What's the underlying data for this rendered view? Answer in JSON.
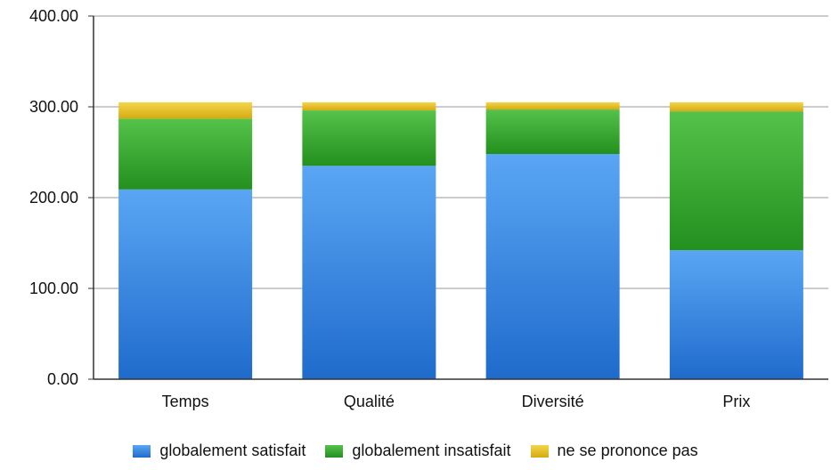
{
  "chart_data": {
    "type": "bar",
    "stacked": true,
    "categories": [
      "Temps",
      "Qualité",
      "Diversité",
      "Prix"
    ],
    "series": [
      {
        "name": "globalement satisfait",
        "values": [
          209,
          235,
          248,
          142
        ],
        "color": "#3f8ee6",
        "color_light": "#5aa6f4",
        "color_dark": "#1f6bcc"
      },
      {
        "name": "globalement insatisfait",
        "values": [
          78,
          61,
          49,
          153
        ],
        "color": "#37a830",
        "color_light": "#55c24a",
        "color_dark": "#23901f"
      },
      {
        "name": "ne se prononce pas",
        "values": [
          18,
          9,
          8,
          10
        ],
        "color": "#e6c21e",
        "color_light": "#f2d64c",
        "color_dark": "#d6aa10"
      }
    ],
    "yticks": [
      "0.00",
      "100.00",
      "200.00",
      "300.00",
      "400.00"
    ],
    "ylim": [
      0,
      400
    ],
    "grid": true,
    "legend_position": "bottom"
  }
}
